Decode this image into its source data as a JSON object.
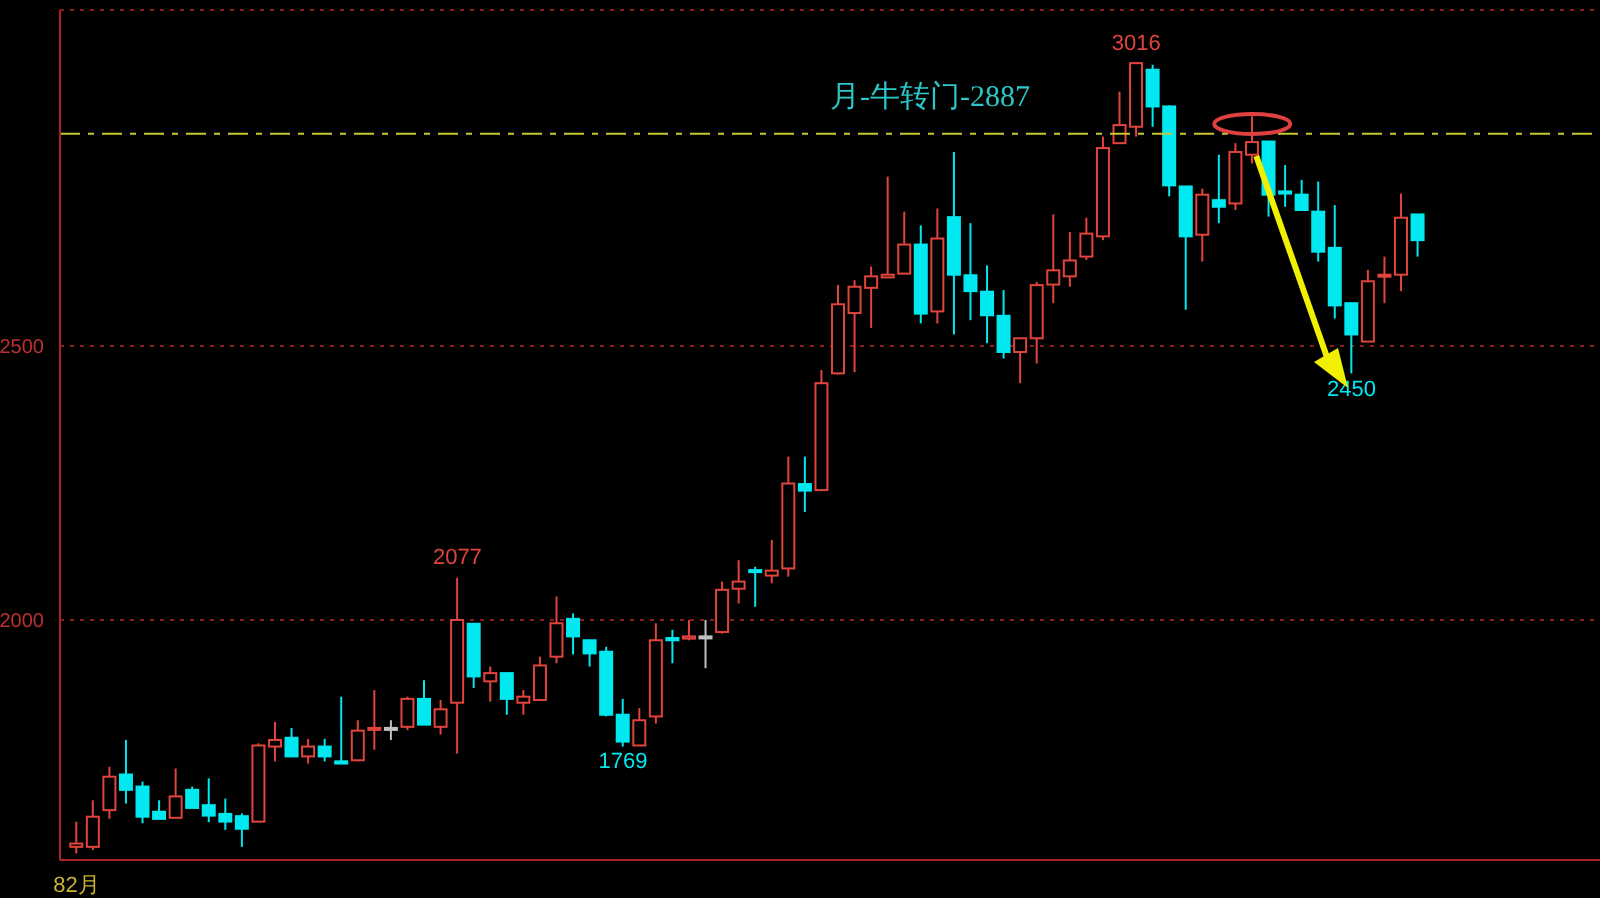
{
  "chart_data": {
    "type": "candlestick",
    "categories": [
      "82月",
      null,
      null,
      null,
      null,
      null,
      null,
      null,
      null,
      null,
      null,
      null,
      null,
      null,
      null,
      null,
      null,
      null,
      null,
      null,
      null,
      null,
      null,
      null,
      null,
      null,
      null,
      null,
      null,
      null,
      null,
      null,
      null,
      null,
      null,
      null,
      null,
      null,
      null,
      null,
      null,
      null,
      null,
      null,
      null,
      null,
      null,
      null,
      null,
      null,
      null,
      null,
      null,
      null,
      null,
      null,
      null,
      null,
      null,
      null,
      null,
      null,
      null,
      null,
      null,
      null,
      null,
      null,
      null,
      null,
      null,
      null,
      null,
      null,
      null,
      null,
      null,
      null,
      null,
      null,
      null,
      null
    ],
    "ohlc": [
      [
        1586,
        1632,
        1574,
        1592
      ],
      [
        1586,
        1671,
        1580,
        1641
      ],
      [
        1653,
        1732,
        1637,
        1714
      ],
      [
        1718,
        1781,
        1665,
        1690
      ],
      [
        1696,
        1705,
        1629,
        1641
      ],
      [
        1650,
        1671,
        1637,
        1637
      ],
      [
        1639,
        1729,
        1639,
        1678
      ],
      [
        1690,
        1696,
        1657,
        1657
      ],
      [
        1662,
        1711,
        1631,
        1643
      ],
      [
        1646,
        1674,
        1617,
        1632
      ],
      [
        1642,
        1647,
        1586,
        1619
      ],
      [
        1632,
        1775,
        1632,
        1771
      ],
      [
        1769,
        1814,
        1742,
        1781
      ],
      [
        1785,
        1803,
        1751,
        1751
      ],
      [
        1751,
        1783,
        1738,
        1769
      ],
      [
        1769,
        1783,
        1742,
        1751
      ],
      [
        1742,
        1860,
        1738,
        1738
      ],
      [
        1744,
        1817,
        1742,
        1798
      ],
      [
        1802,
        1872,
        1763,
        1803
      ],
      [
        1803,
        1817,
        1781,
        1803
      ],
      [
        1805,
        1860,
        1799,
        1856
      ],
      [
        1856,
        1890,
        1809,
        1809
      ],
      [
        1805,
        1854,
        1791,
        1837
      ],
      [
        1849,
        2077,
        1756,
        2000
      ],
      [
        1993,
        1993,
        1876,
        1897
      ],
      [
        1888,
        1915,
        1851,
        1903
      ],
      [
        1903,
        1903,
        1827,
        1856
      ],
      [
        1849,
        1872,
        1827,
        1860
      ],
      [
        1854,
        1933,
        1854,
        1917
      ],
      [
        1933,
        2043,
        1921,
        1994
      ],
      [
        2002,
        2012,
        1937,
        1970
      ],
      [
        1963,
        1963,
        1915,
        1939
      ],
      [
        1942,
        1951,
        1824,
        1827
      ],
      [
        1827,
        1856,
        1769,
        1778
      ],
      [
        1771,
        1839,
        1771,
        1817
      ],
      [
        1824,
        1994,
        1811,
        1963
      ],
      [
        1967,
        1982,
        1921,
        1963
      ],
      [
        1966,
        2000,
        1963,
        1970
      ],
      [
        1970,
        2000,
        1912,
        1970
      ],
      [
        1978,
        2070,
        1975,
        2055
      ],
      [
        2057,
        2109,
        2030,
        2070
      ],
      [
        2091,
        2097,
        2024,
        2088
      ],
      [
        2081,
        2146,
        2067,
        2090
      ],
      [
        2094,
        2298,
        2079,
        2249
      ],
      [
        2248,
        2298,
        2197,
        2236
      ],
      [
        2237,
        2456,
        2237,
        2432
      ],
      [
        2450,
        2611,
        2448,
        2576
      ],
      [
        2560,
        2620,
        2452,
        2608
      ],
      [
        2606,
        2645,
        2533,
        2627
      ],
      [
        2625,
        2809,
        2625,
        2630
      ],
      [
        2632,
        2745,
        2632,
        2685
      ],
      [
        2685,
        2720,
        2541,
        2559
      ],
      [
        2563,
        2751,
        2541,
        2696
      ],
      [
        2735,
        2854,
        2521,
        2630
      ],
      [
        2629,
        2724,
        2547,
        2600
      ],
      [
        2599,
        2647,
        2505,
        2556
      ],
      [
        2555,
        2602,
        2477,
        2489
      ],
      [
        2489,
        2514,
        2432,
        2514
      ],
      [
        2514,
        2617,
        2468,
        2611
      ],
      [
        2612,
        2740,
        2578,
        2638
      ],
      [
        2627,
        2708,
        2608,
        2656
      ],
      [
        2663,
        2734,
        2657,
        2705
      ],
      [
        2700,
        2882,
        2693,
        2861
      ],
      [
        2870,
        2964,
        2870,
        2903
      ],
      [
        2900,
        3016,
        2882,
        3016
      ],
      [
        3004,
        3013,
        2900,
        2937
      ],
      [
        2937,
        2939,
        2773,
        2793
      ],
      [
        2791,
        2791,
        2566,
        2700
      ],
      [
        2703,
        2787,
        2654,
        2776
      ],
      [
        2766,
        2849,
        2724,
        2754
      ],
      [
        2760,
        2870,
        2748,
        2854
      ],
      [
        2849,
        2919,
        2833,
        2872
      ],
      [
        2873,
        2873,
        2736,
        2776
      ],
      [
        2782,
        2830,
        2754,
        2778
      ],
      [
        2776,
        2803,
        2748,
        2748
      ],
      [
        2745,
        2800,
        2654,
        2672
      ],
      [
        2679,
        2757,
        2550,
        2574
      ],
      [
        2578,
        2578,
        2450,
        2521
      ],
      [
        2508,
        2639,
        2508,
        2618
      ],
      [
        2627,
        2663,
        2578,
        2630
      ],
      [
        2630,
        2778,
        2600,
        2734
      ],
      [
        2740,
        2740,
        2663,
        2693
      ]
    ],
    "colors": [
      "#e0443c",
      "#e0443c",
      "#e0443c",
      "#00e8f0",
      "#00e8f0",
      "#00e8f0",
      "#e0443c",
      "#00e8f0",
      "#00e8f0",
      "#00e8f0",
      "#00e8f0",
      "#e0443c",
      "#e0443c",
      "#00e8f0",
      "#e0443c",
      "#00e8f0",
      "#00e8f0",
      "#e0443c",
      "#e0443c",
      "#c0c0c0",
      "#e0443c",
      "#00e8f0",
      "#e0443c",
      "#e0443c",
      "#00e8f0",
      "#e0443c",
      "#00e8f0",
      "#e0443c",
      "#e0443c",
      "#e0443c",
      "#00e8f0",
      "#00e8f0",
      "#00e8f0",
      "#00e8f0",
      "#e0443c",
      "#e0443c",
      "#00e8f0",
      "#e0443c",
      "#c0c0c0",
      "#e0443c",
      "#e0443c",
      "#00e8f0",
      "#e0443c",
      "#e0443c",
      "#00e8f0",
      "#e0443c",
      "#e0443c",
      "#e0443c",
      "#e0443c",
      "#e0443c",
      "#e0443c",
      "#00e8f0",
      "#e0443c",
      "#00e8f0",
      "#00e8f0",
      "#00e8f0",
      "#00e8f0",
      "#e0443c",
      "#e0443c",
      "#e0443c",
      "#e0443c",
      "#e0443c",
      "#e0443c",
      "#e0443c",
      "#e0443c",
      "#00e8f0",
      "#00e8f0",
      "#00e8f0",
      "#e0443c",
      "#00e8f0",
      "#e0443c",
      "#e0443c",
      "#00e8f0",
      "#00e8f0",
      "#00e8f0",
      "#00e8f0",
      "#00e8f0",
      "#00e8f0",
      "#e0443c",
      "#e0443c",
      "#e0443c",
      "#00e8f0"
    ],
    "ylim": [
      1562,
      3113
    ],
    "yticks": [
      2000,
      2500
    ],
    "grid": "y",
    "ref_lines": [
      {
        "axis": "y",
        "value": 2887,
        "label": "月-牛转门-2887",
        "color": "#c8c832",
        "line_style": "dashed"
      }
    ],
    "annotations": [
      {
        "text": "3016",
        "y": 3016
      },
      {
        "text": "2077",
        "y": 2077
      },
      {
        "text": "1769",
        "y": 1769
      },
      {
        "text": "2450",
        "y": 2450
      }
    ]
  }
}
